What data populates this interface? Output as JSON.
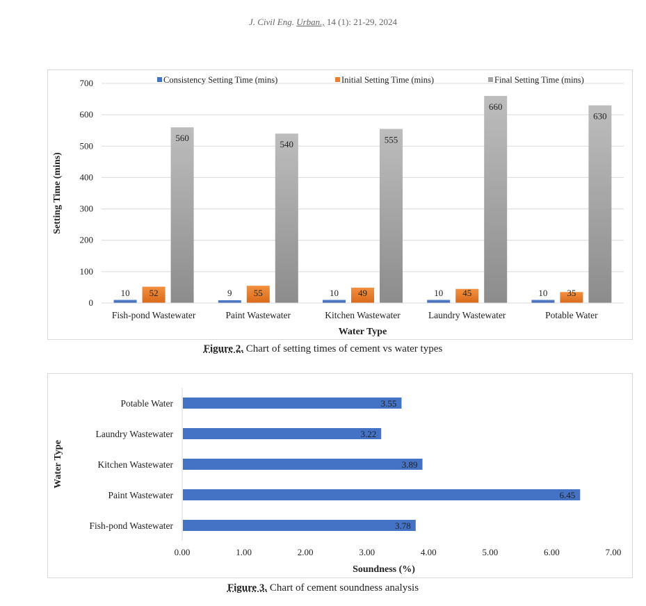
{
  "header": {
    "journal": "J. Civil Eng.",
    "journal_suffix": "Urban.,",
    "volume_pages": "14 (1): 21-29, 2024"
  },
  "figure2": {
    "caption_label": "Figure 2.",
    "caption_text": "Chart of setting times of cement vs water types"
  },
  "figure3": {
    "caption_label": "Figure 3.",
    "caption_text": "Chart of cement soundness analysis"
  },
  "chart_data": [
    {
      "type": "bar",
      "orientation": "vertical",
      "title": "",
      "xlabel": "Water Type",
      "ylabel": "Setting Time (mins)",
      "categories": [
        "Fish-pond Wastewater",
        "Paint Wastewater",
        "Kitchen Wastewater",
        "Laundry Wastewater",
        "Potable Water"
      ],
      "series": [
        {
          "name": "Consistency Setting Time (mins)",
          "color": "#4472c4",
          "values": [
            10,
            9,
            10,
            10,
            10
          ]
        },
        {
          "name": "Initial Setting Time (mins)",
          "color": "#ed7d31",
          "values": [
            52,
            55,
            49,
            45,
            35
          ]
        },
        {
          "name": "Final Setting Time (mins)",
          "color": "#a5a5a5",
          "values": [
            560,
            540,
            555,
            660,
            630
          ]
        }
      ],
      "ylim": [
        0,
        700
      ],
      "yticks": [
        "0",
        "100",
        "200",
        "300",
        "400",
        "500",
        "600",
        "700"
      ],
      "grid": true,
      "legend_position": "top"
    },
    {
      "type": "bar",
      "orientation": "horizontal",
      "title": "",
      "xlabel": "Soundness (%)",
      "ylabel": "Water Type",
      "categories": [
        "Fish-pond Wastewater",
        "Paint Wastewater",
        "Kitchen Wastewater",
        "Laundry Wastewater",
        "Potable Water"
      ],
      "values": [
        3.78,
        6.45,
        3.89,
        3.22,
        3.55
      ],
      "value_labels": [
        "3.78",
        "6.45",
        "3.89",
        "3.22",
        "3.55"
      ],
      "color": "#4472c4",
      "xlim": [
        0,
        7
      ],
      "xticks": [
        "0.00",
        "1.00",
        "2.00",
        "3.00",
        "4.00",
        "5.00",
        "6.00",
        "7.00"
      ],
      "grid": false
    }
  ]
}
